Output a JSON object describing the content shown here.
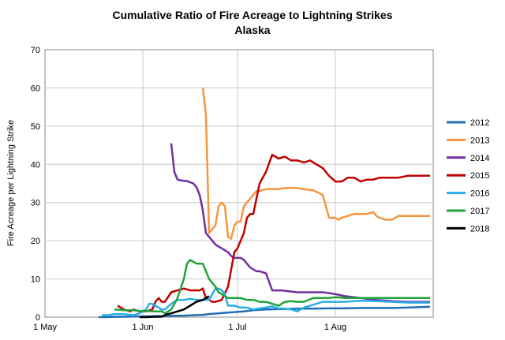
{
  "chart_data": {
    "type": "line",
    "title": "Cumulative Ratio of Fire Acreage to Lightning Strikes",
    "subtitle": "Alaska",
    "xlabel": "",
    "ylabel": "Fire Acreage per Lightning Strike",
    "xlim": [
      "May 1",
      "Sep 1"
    ],
    "ylim": [
      0,
      70
    ],
    "x_ticks": [
      "1 May",
      "1 Jun",
      "1 Jul",
      "1 Aug"
    ],
    "y_ticks": [
      "0",
      "10",
      "20",
      "30",
      "40",
      "50",
      "60",
      "70"
    ],
    "grid": true,
    "legend_position": "right",
    "series": [
      {
        "name": "2012",
        "color": "#1F6FB5",
        "x": [
          17,
          25,
          32,
          38,
          44,
          50,
          52,
          55,
          58,
          63,
          66,
          70,
          75,
          80,
          85,
          90,
          95,
          100,
          105,
          110,
          115,
          118,
          122
        ],
        "y": [
          0,
          0.1,
          0.2,
          0.3,
          0.4,
          0.6,
          0.8,
          1.0,
          1.2,
          1.5,
          1.8,
          2.0,
          2.1,
          2.2,
          2.2,
          2.3,
          2.3,
          2.4,
          2.4,
          2.4,
          2.5,
          2.6,
          2.7
        ]
      },
      {
        "name": "2013",
        "color": "#F7953E",
        "x": [
          50,
          51,
          52,
          53,
          54,
          55,
          56,
          57,
          58,
          59,
          60,
          61,
          62,
          63,
          64,
          65,
          66,
          67,
          68,
          70,
          72,
          74,
          76,
          78,
          80,
          82,
          85,
          88,
          90,
          92,
          93,
          94,
          96,
          98,
          100,
          102,
          104,
          105,
          106,
          108,
          110,
          112,
          115,
          118,
          122
        ],
        "y": [
          60,
          53,
          22,
          23,
          24,
          29,
          30,
          29,
          21,
          20.5,
          24,
          25,
          25,
          29,
          30,
          31,
          32,
          33,
          33,
          33.5,
          33.5,
          33.5,
          33.8,
          33.8,
          33.8,
          33.5,
          33.2,
          32,
          26,
          26,
          25.5,
          26,
          26.5,
          27,
          27,
          27,
          27.5,
          26.5,
          26,
          25.5,
          25.5,
          26.5,
          26.5,
          26.5,
          26.5
        ]
      },
      {
        "name": "2014",
        "color": "#7030A0",
        "x": [
          40,
          41,
          42,
          43,
          45,
          47,
          48,
          49,
          50,
          51,
          52,
          53,
          54,
          55,
          56,
          57,
          58,
          59,
          60,
          61,
          62,
          63,
          64,
          65,
          66,
          67,
          68,
          70,
          72,
          75,
          80,
          85,
          88,
          90,
          92,
          95,
          100,
          105,
          110,
          115,
          122
        ],
        "y": [
          45.5,
          38,
          36,
          35.8,
          35.6,
          35,
          34,
          32,
          28,
          22,
          21,
          20,
          19,
          18.5,
          18,
          17.5,
          17,
          16,
          15.5,
          15.5,
          15.5,
          15,
          14,
          13,
          12.5,
          12,
          12,
          11.5,
          7,
          7,
          6.5,
          6.5,
          6.5,
          6.3,
          6,
          5.5,
          5,
          4.5,
          4.2,
          4,
          4
        ]
      },
      {
        "name": "2015",
        "color": "#C00000",
        "x": [
          23,
          25,
          27,
          28,
          30,
          32,
          34,
          35,
          36,
          37,
          38,
          40,
          42,
          44,
          46,
          48,
          49,
          50,
          51,
          52,
          53,
          54,
          56,
          58,
          60,
          61,
          62,
          63,
          64,
          65,
          66,
          68,
          70,
          72,
          74,
          76,
          78,
          80,
          82,
          84,
          86,
          88,
          90,
          92,
          94,
          95,
          96,
          98,
          100,
          102,
          104,
          106,
          108,
          110,
          112,
          115,
          118,
          122
        ],
        "y": [
          3,
          2,
          1.5,
          2,
          1.5,
          1.5,
          2,
          4,
          5,
          4,
          4,
          6.5,
          7,
          7.5,
          7,
          7,
          7,
          7.5,
          5,
          4.5,
          4,
          4,
          4.5,
          8,
          17,
          18,
          20,
          22,
          26,
          27,
          27,
          35,
          38,
          42.5,
          41.5,
          42,
          41,
          41,
          40.5,
          41,
          40,
          39,
          37,
          35.5,
          35.5,
          36,
          36.5,
          36.5,
          35.5,
          36,
          36,
          36.5,
          36.5,
          36.5,
          36.5,
          37,
          37,
          37
        ]
      },
      {
        "name": "2016",
        "color": "#2AAEE6",
        "x": [
          18,
          20,
          22,
          25,
          28,
          30,
          32,
          33,
          34,
          35,
          37,
          38,
          40,
          42,
          44,
          46,
          48,
          50,
          52,
          53,
          54,
          55,
          56,
          57,
          58,
          60,
          62,
          64,
          66,
          68,
          70,
          72,
          74,
          76,
          78,
          80,
          82,
          84,
          86,
          88,
          90,
          95,
          100,
          105,
          110,
          115,
          122
        ],
        "y": [
          0.5,
          0.5,
          0.8,
          0.8,
          0.5,
          1,
          2,
          3.5,
          3.5,
          3,
          2,
          2,
          3.5,
          4.5,
          4.5,
          4.8,
          4.5,
          4.5,
          4.5,
          6,
          7.5,
          7.5,
          7,
          6,
          3,
          3,
          2.5,
          2.5,
          2,
          2.3,
          2.5,
          2.8,
          2.3,
          2.2,
          2,
          1.5,
          2.5,
          3,
          3.5,
          4,
          4,
          4,
          4.3,
          4.2,
          4,
          3.8,
          3.8
        ]
      },
      {
        "name": "2017",
        "color": "#1FA33A",
        "x": [
          22,
          25,
          28,
          30,
          32,
          35,
          37,
          38,
          40,
          42,
          44,
          45,
          46,
          47,
          48,
          50,
          52,
          53,
          54,
          55,
          56,
          57,
          58,
          60,
          62,
          64,
          66,
          68,
          70,
          72,
          74,
          76,
          78,
          80,
          82,
          85,
          88,
          90,
          92,
          95,
          100,
          105,
          110,
          115,
          122
        ],
        "y": [
          2,
          1.8,
          1.8,
          1.6,
          1.6,
          1.5,
          1.5,
          1,
          2,
          5,
          10,
          14,
          15,
          14.5,
          14,
          14,
          10,
          9,
          8,
          6.5,
          6,
          5.5,
          5,
          5,
          5,
          4.5,
          4.5,
          4,
          4,
          3.5,
          3,
          4,
          4.2,
          4,
          4,
          5,
          5,
          5,
          5.2,
          5,
          5,
          5,
          5,
          5,
          5
        ]
      },
      {
        "name": "2018",
        "color": "#000000",
        "x": [
          30,
          32,
          35,
          37,
          38,
          39,
          40,
          42,
          44,
          46,
          48,
          50,
          51,
          52
        ],
        "y": [
          0,
          0,
          0.1,
          0.1,
          0.5,
          0.8,
          1,
          1.5,
          2,
          3,
          4,
          4.5,
          5,
          5.5
        ]
      }
    ],
    "x_day_note": "x is days after May 1"
  }
}
